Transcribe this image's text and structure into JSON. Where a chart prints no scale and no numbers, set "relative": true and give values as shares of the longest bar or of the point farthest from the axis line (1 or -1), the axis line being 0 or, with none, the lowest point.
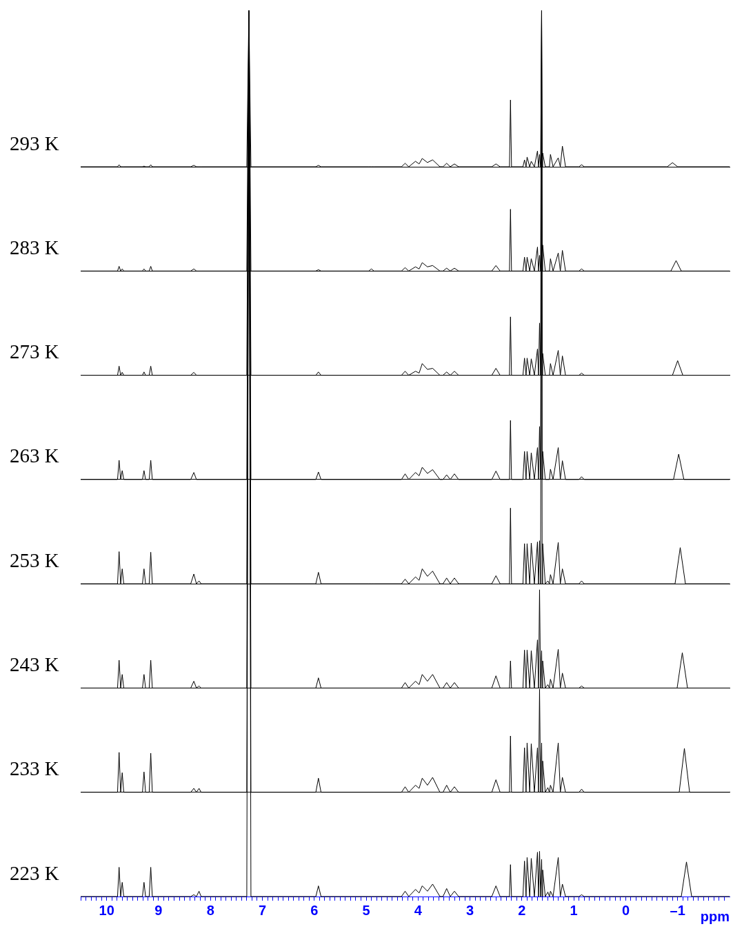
{
  "chart_data": [
    {
      "type": "line",
      "relative": true,
      "tick_labels": false,
      "xlim": [
        10.5,
        -2.0
      ],
      "x": [
        10.5,
        9.79,
        9.76,
        9.73,
        9.7,
        9.67,
        9.31,
        9.28,
        9.25,
        9.18,
        9.15,
        9.12,
        8.38,
        8.32,
        8.27,
        8.22,
        8.18,
        7.3,
        7.26,
        7.22,
        5.97,
        5.92,
        5.87,
        4.95,
        4.9,
        4.85,
        4.32,
        4.25,
        4.18,
        4.05,
        3.98,
        3.92,
        3.82,
        3.72,
        3.58,
        3.52,
        3.45,
        3.38,
        3.3,
        3.22,
        2.58,
        2.5,
        2.42,
        2.24,
        2.22,
        2.2,
        1.98,
        1.95,
        1.92,
        1.9,
        1.85,
        1.82,
        1.76,
        1.7,
        1.68,
        1.66,
        1.64,
        1.62,
        1.61,
        1.6,
        1.55,
        1.5,
        1.47,
        1.45,
        1.4,
        1.3,
        1.26,
        1.22,
        1.16,
        0.9,
        0.85,
        0.8,
        -0.8,
        -0.9,
        -1.0,
        -2.0
      ],
      "series": [
        {
          "name": "293 K",
          "color": "#000000",
          "values": [
            0,
            0,
            0.013,
            0,
            0,
            0,
            0,
            0.004,
            0,
            0,
            0.013,
            0,
            0,
            0.009,
            0,
            0,
            0,
            0,
            1,
            0,
            0,
            0.009,
            0,
            0,
            0,
            0,
            0,
            0.022,
            0,
            0.035,
            0.018,
            0.053,
            0.027,
            0.044,
            0,
            0,
            0.022,
            0,
            0.018,
            0,
            0,
            0.018,
            0,
            0,
            0.427,
            0,
            0,
            0.044,
            0,
            0.062,
            0,
            0.035,
            0,
            0.101,
            0,
            0.079,
            0,
            1,
            0,
            0.088,
            0,
            0,
            0,
            0.079,
            0,
            0.057,
            0,
            0.132,
            0,
            0,
            0.013,
            0,
            0,
            0.026,
            0,
            0
          ]
        }
      ]
    },
    {
      "type": "line",
      "relative": true,
      "tick_labels": false,
      "xlim": [
        10.5,
        -2.0
      ],
      "x": [
        10.5,
        9.79,
        9.76,
        9.73,
        9.7,
        9.67,
        9.31,
        9.28,
        9.25,
        9.18,
        9.15,
        9.12,
        8.38,
        8.32,
        8.27,
        8.22,
        8.18,
        7.3,
        7.26,
        7.22,
        5.97,
        5.92,
        5.87,
        4.95,
        4.9,
        4.85,
        4.32,
        4.25,
        4.18,
        4.05,
        3.98,
        3.92,
        3.82,
        3.72,
        3.58,
        3.52,
        3.45,
        3.38,
        3.3,
        3.22,
        2.58,
        2.5,
        2.42,
        2.24,
        2.22,
        2.2,
        1.98,
        1.95,
        1.92,
        1.9,
        1.85,
        1.82,
        1.76,
        1.7,
        1.68,
        1.66,
        1.64,
        1.62,
        1.61,
        1.6,
        1.55,
        1.5,
        1.47,
        1.45,
        1.4,
        1.3,
        1.26,
        1.22,
        1.16,
        0.9,
        0.85,
        0.8,
        -0.87,
        -0.97,
        -1.07,
        -2.0
      ],
      "series": [
        {
          "name": "283 K",
          "color": "#000000",
          "values": [
            0,
            0,
            0.018,
            0,
            0.008,
            0,
            0,
            0.008,
            0,
            0,
            0.018,
            0,
            0,
            0.008,
            0,
            0,
            0,
            0,
            1,
            0,
            0,
            0.005,
            0,
            0,
            0.008,
            0,
            0,
            0.013,
            0,
            0.016,
            0.008,
            0.032,
            0.016,
            0.021,
            0,
            0,
            0.011,
            0,
            0.011,
            0,
            0,
            0.021,
            0,
            0,
            0.237,
            0,
            0,
            0.053,
            0,
            0.053,
            0,
            0.047,
            0,
            0.092,
            0,
            0.06,
            0,
            1,
            0,
            0.1,
            0,
            0,
            0,
            0.047,
            0,
            0.069,
            0,
            0.079,
            0,
            0,
            0.008,
            0,
            0,
            0.04,
            0,
            0
          ]
        }
      ]
    },
    {
      "type": "line",
      "relative": true,
      "tick_labels": false,
      "xlim": [
        10.5,
        -2.0
      ],
      "x": [
        10.5,
        9.79,
        9.76,
        9.73,
        9.7,
        9.67,
        9.31,
        9.28,
        9.25,
        9.18,
        9.15,
        9.12,
        8.38,
        8.32,
        8.27,
        8.22,
        8.18,
        7.3,
        7.26,
        7.22,
        5.97,
        5.92,
        5.87,
        4.95,
        4.9,
        4.85,
        4.32,
        4.25,
        4.18,
        4.05,
        3.98,
        3.92,
        3.82,
        3.72,
        3.58,
        3.52,
        3.45,
        3.38,
        3.3,
        3.22,
        2.58,
        2.5,
        2.42,
        2.24,
        2.22,
        2.2,
        1.98,
        1.95,
        1.92,
        1.9,
        1.85,
        1.82,
        1.76,
        1.7,
        1.68,
        1.66,
        1.64,
        1.62,
        1.61,
        1.6,
        1.55,
        1.5,
        1.47,
        1.45,
        1.4,
        1.3,
        1.26,
        1.22,
        1.16,
        0.9,
        0.85,
        0.8,
        -0.9,
        -1.0,
        -1.1,
        -2.0
      ],
      "series": [
        {
          "name": "273 K",
          "color": "#000000",
          "values": [
            0,
            0,
            0.025,
            0,
            0.008,
            0,
            0,
            0.009,
            0,
            0,
            0.025,
            0,
            0,
            0.008,
            0,
            0,
            0,
            0,
            1,
            0,
            0,
            0.009,
            0,
            0,
            0,
            0,
            0,
            0.011,
            0,
            0.011,
            0.006,
            0.032,
            0.016,
            0.019,
            0,
            0,
            0.009,
            0,
            0.011,
            0,
            0,
            0.019,
            0,
            0,
            0.16,
            0,
            0,
            0.047,
            0,
            0.047,
            0,
            0.045,
            0,
            0.072,
            0,
            0.143,
            0,
            1,
            0,
            0.06,
            0,
            0,
            0,
            0.032,
            0,
            0.068,
            0,
            0.053,
            0,
            0,
            0.006,
            0,
            0,
            0.04,
            0,
            0
          ]
        }
      ]
    },
    {
      "type": "line",
      "relative": true,
      "tick_labels": false,
      "xlim": [
        10.5,
        -2.0
      ],
      "x": [
        10.5,
        9.79,
        9.76,
        9.73,
        9.7,
        9.67,
        9.31,
        9.28,
        9.25,
        9.18,
        9.15,
        9.12,
        8.38,
        8.32,
        8.27,
        8.22,
        8.18,
        7.3,
        7.26,
        7.22,
        5.97,
        5.92,
        5.87,
        4.95,
        4.9,
        4.85,
        4.32,
        4.25,
        4.18,
        4.05,
        3.98,
        3.92,
        3.82,
        3.72,
        3.58,
        3.52,
        3.45,
        3.38,
        3.3,
        3.22,
        2.58,
        2.5,
        2.42,
        2.24,
        2.22,
        2.2,
        1.98,
        1.95,
        1.92,
        1.9,
        1.85,
        1.82,
        1.76,
        1.7,
        1.68,
        1.66,
        1.64,
        1.62,
        1.61,
        1.6,
        1.55,
        1.5,
        1.47,
        1.45,
        1.4,
        1.3,
        1.26,
        1.22,
        1.16,
        0.9,
        0.85,
        0.8,
        -0.92,
        -1.02,
        -1.12,
        -2.0
      ],
      "series": [
        {
          "name": "263 K",
          "color": "#000000",
          "values": [
            0,
            0,
            0.041,
            0,
            0.019,
            0,
            0,
            0.019,
            0,
            0,
            0.041,
            0,
            0,
            0.015,
            0,
            0,
            0,
            0,
            1,
            0,
            0,
            0.016,
            0,
            0,
            0,
            0,
            0,
            0.012,
            0,
            0.015,
            0.008,
            0.026,
            0.013,
            0.021,
            0,
            0,
            0.01,
            0,
            0.012,
            0,
            0,
            0.018,
            0,
            0,
            0.126,
            0,
            0,
            0.06,
            0,
            0.06,
            0,
            0.057,
            0,
            0.068,
            0,
            0.113,
            0,
            1,
            0,
            0.06,
            0,
            0,
            0,
            0.022,
            0,
            0.068,
            0,
            0.04,
            0,
            0,
            0.006,
            0,
            0,
            0.054,
            0,
            0
          ]
        }
      ]
    },
    {
      "type": "line",
      "relative": true,
      "tick_labels": false,
      "xlim": [
        10.5,
        -2.0
      ],
      "x": [
        10.5,
        9.79,
        9.76,
        9.73,
        9.7,
        9.67,
        9.31,
        9.28,
        9.25,
        9.18,
        9.15,
        9.12,
        8.38,
        8.32,
        8.27,
        8.22,
        8.18,
        7.3,
        7.26,
        7.22,
        5.97,
        5.92,
        5.87,
        4.95,
        4.9,
        4.85,
        4.32,
        4.25,
        4.18,
        4.05,
        3.98,
        3.92,
        3.82,
        3.72,
        3.58,
        3.52,
        3.45,
        3.38,
        3.3,
        3.22,
        2.58,
        2.5,
        2.42,
        2.24,
        2.22,
        2.2,
        1.98,
        1.95,
        1.92,
        1.9,
        1.85,
        1.82,
        1.76,
        1.7,
        1.68,
        1.66,
        1.64,
        1.62,
        1.61,
        1.6,
        1.55,
        1.5,
        1.47,
        1.45,
        1.4,
        1.3,
        1.26,
        1.22,
        1.16,
        0.9,
        0.85,
        0.8,
        -0.95,
        -1.05,
        -1.15,
        -2.0
      ],
      "series": [
        {
          "name": "253 K",
          "color": "#000000",
          "values": [
            0,
            0,
            0.056,
            0,
            0.026,
            0,
            0,
            0.026,
            0,
            0,
            0.055,
            0,
            0,
            0.017,
            0,
            0.005,
            0,
            0,
            1,
            0,
            0,
            0.02,
            0,
            0,
            0,
            0,
            0,
            0.008,
            0,
            0.012,
            0.006,
            0.026,
            0.013,
            0.022,
            0,
            0,
            0.01,
            0,
            0.01,
            0,
            0,
            0.014,
            0,
            0,
            0.132,
            0,
            0,
            0.07,
            0,
            0.07,
            0,
            0.071,
            0,
            0.073,
            0,
            0.075,
            0,
            1,
            0,
            0.07,
            0,
            0.005,
            0,
            0.016,
            0,
            0.072,
            0,
            0.026,
            0,
            0,
            0.005,
            0,
            0,
            0.063,
            0,
            0
          ]
        }
      ]
    },
    {
      "type": "line",
      "relative": true,
      "tick_labels": false,
      "xlim": [
        10.5,
        -2.0
      ],
      "x": [
        10.5,
        9.79,
        9.76,
        9.73,
        9.7,
        9.67,
        9.31,
        9.28,
        9.25,
        9.18,
        9.15,
        9.12,
        8.38,
        8.32,
        8.27,
        8.22,
        8.18,
        7.3,
        7.26,
        7.22,
        5.97,
        5.92,
        5.87,
        4.95,
        4.9,
        4.85,
        4.32,
        4.25,
        4.18,
        4.05,
        3.98,
        3.92,
        3.82,
        3.72,
        3.58,
        3.52,
        3.45,
        3.38,
        3.3,
        3.22,
        2.58,
        2.5,
        2.42,
        2.24,
        2.22,
        2.2,
        1.98,
        1.95,
        1.92,
        1.9,
        1.85,
        1.82,
        1.76,
        1.7,
        1.68,
        1.66,
        1.64,
        1.62,
        1.61,
        1.6,
        1.55,
        1.5,
        1.47,
        1.45,
        1.4,
        1.3,
        1.26,
        1.22,
        1.16,
        0.9,
        0.85,
        0.8,
        -0.99,
        -1.09,
        -1.19,
        -2.0
      ],
      "series": [
        {
          "name": "243 K",
          "color": "#000000",
          "values": [
            0,
            0,
            0.041,
            0,
            0.02,
            0,
            0,
            0.02,
            0,
            0,
            0.041,
            0,
            0,
            0.01,
            0,
            0.003,
            0,
            0,
            1,
            0,
            0,
            0.015,
            0,
            0,
            0,
            0,
            0,
            0.008,
            0,
            0.01,
            0.005,
            0.02,
            0.01,
            0.02,
            0,
            0,
            0.008,
            0,
            0.008,
            0,
            0,
            0.018,
            0,
            0,
            0.04,
            0,
            0,
            0.056,
            0,
            0.056,
            0,
            0.055,
            0,
            0.071,
            0,
            0.145,
            0,
            0.055,
            0,
            0.04,
            0,
            0.005,
            0,
            0.013,
            0,
            0.057,
            0,
            0.022,
            0,
            0,
            0.003,
            0,
            0,
            0.052,
            0,
            0
          ]
        }
      ]
    },
    {
      "type": "line",
      "relative": true,
      "tick_labels": false,
      "xlim": [
        10.5,
        -2.0
      ],
      "x": [
        10.5,
        9.79,
        9.76,
        9.73,
        9.7,
        9.67,
        9.31,
        9.28,
        9.25,
        9.18,
        9.15,
        9.12,
        8.38,
        8.32,
        8.27,
        8.22,
        8.18,
        7.3,
        7.26,
        7.22,
        5.97,
        5.92,
        5.87,
        4.95,
        4.9,
        4.85,
        4.32,
        4.25,
        4.18,
        4.05,
        3.98,
        3.92,
        3.82,
        3.72,
        3.58,
        3.52,
        3.45,
        3.38,
        3.3,
        3.22,
        2.58,
        2.5,
        2.42,
        2.24,
        2.22,
        2.2,
        1.98,
        1.95,
        1.92,
        1.9,
        1.85,
        1.82,
        1.76,
        1.7,
        1.68,
        1.66,
        1.64,
        1.62,
        1.61,
        1.6,
        1.55,
        1.5,
        1.47,
        1.45,
        1.4,
        1.3,
        1.26,
        1.22,
        1.16,
        0.9,
        0.85,
        0.8,
        -1.03,
        -1.13,
        -1.23,
        -2.0
      ],
      "series": [
        {
          "name": "233 K",
          "color": "#000000",
          "values": [
            0,
            0,
            0.051,
            0,
            0.025,
            0,
            0,
            0.026,
            0,
            0,
            0.05,
            0,
            0,
            0.005,
            0,
            0.005,
            0,
            0,
            1,
            0,
            0,
            0.018,
            0,
            0,
            0,
            0,
            0,
            0.007,
            0,
            0.009,
            0.005,
            0.018,
            0.009,
            0.019,
            0,
            0,
            0.009,
            0,
            0.007,
            0,
            0,
            0.016,
            0,
            0,
            0.072,
            0,
            0,
            0.057,
            0,
            0.063,
            0,
            0.062,
            0,
            0.057,
            0,
            0.132,
            0,
            0.063,
            0,
            0.04,
            0,
            0.006,
            0,
            0.009,
            0,
            0.063,
            0,
            0.019,
            0,
            0,
            0.004,
            0,
            0,
            0.056,
            0,
            0
          ]
        }
      ]
    },
    {
      "type": "line",
      "relative": true,
      "tick_labels": "x",
      "xlim": [
        10.5,
        -2.0
      ],
      "xlabel": "ppm",
      "xticks": [
        {
          "value": 10.5,
          "label": null
        },
        {
          "value": 10.4,
          "label": null
        },
        {
          "value": 10.3,
          "label": null
        },
        {
          "value": 10.2,
          "label": null
        },
        {
          "value": 10.1,
          "label": null
        },
        10,
        {
          "value": 9.9,
          "label": null
        },
        {
          "value": 9.8,
          "label": null
        },
        {
          "value": 9.7,
          "label": null
        },
        {
          "value": 9.6,
          "label": null
        },
        {
          "value": 9.5,
          "label": null
        },
        {
          "value": 9.4,
          "label": null
        },
        {
          "value": 9.3,
          "label": null
        },
        {
          "value": 9.2,
          "label": null
        },
        {
          "value": 9.1,
          "label": null
        },
        9,
        {
          "value": 8.9,
          "label": null
        },
        {
          "value": 8.8,
          "label": null
        },
        {
          "value": 8.7,
          "label": null
        },
        {
          "value": 8.6,
          "label": null
        },
        {
          "value": 8.5,
          "label": null
        },
        {
          "value": 8.4,
          "label": null
        },
        {
          "value": 8.3,
          "label": null
        },
        {
          "value": 8.2,
          "label": null
        },
        {
          "value": 8.1,
          "label": null
        },
        8,
        {
          "value": 7.9,
          "label": null
        },
        {
          "value": 7.8,
          "label": null
        },
        {
          "value": 7.7,
          "label": null
        },
        {
          "value": 7.6,
          "label": null
        },
        {
          "value": 7.5,
          "label": null
        },
        {
          "value": 7.4,
          "label": null
        },
        {
          "value": 7.3,
          "label": null
        },
        {
          "value": 7.2,
          "label": null
        },
        {
          "value": 7.1,
          "label": null
        },
        7,
        {
          "value": 6.9,
          "label": null
        },
        {
          "value": 6.8,
          "label": null
        },
        {
          "value": 6.7,
          "label": null
        },
        {
          "value": 6.6,
          "label": null
        },
        {
          "value": 6.5,
          "label": null
        },
        {
          "value": 6.4,
          "label": null
        },
        {
          "value": 6.3,
          "label": null
        },
        {
          "value": 6.2,
          "label": null
        },
        {
          "value": 6.1,
          "label": null
        },
        6,
        {
          "value": 5.9,
          "label": null
        },
        {
          "value": 5.8,
          "label": null
        },
        {
          "value": 5.7,
          "label": null
        },
        {
          "value": 5.6,
          "label": null
        },
        {
          "value": 5.5,
          "label": null
        },
        {
          "value": 5.4,
          "label": null
        },
        {
          "value": 5.3,
          "label": null
        },
        {
          "value": 5.2,
          "label": null
        },
        {
          "value": 5.1,
          "label": null
        },
        5,
        {
          "value": 4.9,
          "label": null
        },
        {
          "value": 4.8,
          "label": null
        },
        {
          "value": 4.7,
          "label": null
        },
        {
          "value": 4.6,
          "label": null
        },
        {
          "value": 4.5,
          "label": null
        },
        {
          "value": 4.4,
          "label": null
        },
        {
          "value": 4.3,
          "label": null
        },
        {
          "value": 4.2,
          "label": null
        },
        {
          "value": 4.1,
          "label": null
        },
        4,
        {
          "value": 3.9,
          "label": null
        },
        {
          "value": 3.8,
          "label": null
        },
        {
          "value": 3.7,
          "label": null
        },
        {
          "value": 3.6,
          "label": null
        },
        {
          "value": 3.5,
          "label": null
        },
        {
          "value": 3.4,
          "label": null
        },
        {
          "value": 3.3,
          "label": null
        },
        {
          "value": 3.2,
          "label": null
        },
        {
          "value": 3.1,
          "label": null
        },
        3,
        {
          "value": 2.9,
          "label": null
        },
        {
          "value": 2.8,
          "label": null
        },
        {
          "value": 2.7,
          "label": null
        },
        {
          "value": 2.6,
          "label": null
        },
        {
          "value": 2.5,
          "label": null
        },
        {
          "value": 2.4,
          "label": null
        },
        {
          "value": 2.3,
          "label": null
        },
        {
          "value": 2.2,
          "label": null
        },
        {
          "value": 2.1,
          "label": null
        },
        2,
        {
          "value": 1.9,
          "label": null
        },
        {
          "value": 1.8,
          "label": null
        },
        {
          "value": 1.7,
          "label": null
        },
        {
          "value": 1.6,
          "label": null
        },
        {
          "value": 1.5,
          "label": null
        },
        {
          "value": 1.4,
          "label": null
        },
        {
          "value": 1.3,
          "label": null
        },
        {
          "value": 1.2,
          "label": null
        },
        {
          "value": 1.1,
          "label": null
        },
        1,
        {
          "value": 0.9,
          "label": null
        },
        {
          "value": 0.8,
          "label": null
        },
        {
          "value": 0.7,
          "label": null
        },
        {
          "value": 0.6,
          "label": null
        },
        {
          "value": 0.5,
          "label": null
        },
        {
          "value": 0.4,
          "label": null
        },
        {
          "value": 0.3,
          "label": null
        },
        {
          "value": 0.2,
          "label": null
        },
        {
          "value": 0.1,
          "label": null
        },
        0,
        {
          "value": -0.1,
          "label": null
        },
        {
          "value": -0.2,
          "label": null
        },
        {
          "value": -0.3,
          "label": null
        },
        {
          "value": -0.4,
          "label": null
        },
        {
          "value": -0.5,
          "label": null
        },
        {
          "value": -0.6,
          "label": null
        },
        {
          "value": -0.7,
          "label": null
        },
        {
          "value": -0.8,
          "label": null
        },
        {
          "value": -0.9,
          "label": null
        },
        {
          "value": -1,
          "label": "–1"
        },
        {
          "value": -1.1,
          "label": null
        },
        {
          "value": -1.2,
          "label": null
        },
        {
          "value": -1.3,
          "label": null
        },
        {
          "value": -1.4,
          "label": null
        },
        {
          "value": -1.5,
          "label": null
        },
        {
          "value": -1.6,
          "label": null
        },
        {
          "value": -1.7,
          "label": null
        },
        {
          "value": -1.8,
          "label": null
        },
        {
          "value": -1.9,
          "label": null
        }
      ],
      "x": [
        10.5,
        9.79,
        9.76,
        9.73,
        9.7,
        9.67,
        9.31,
        9.28,
        9.25,
        9.18,
        9.15,
        9.12,
        8.38,
        8.32,
        8.27,
        8.22,
        8.18,
        7.3,
        7.26,
        7.22,
        5.97,
        5.92,
        5.87,
        4.95,
        4.9,
        4.85,
        4.32,
        4.25,
        4.18,
        4.05,
        3.98,
        3.92,
        3.82,
        3.72,
        3.58,
        3.52,
        3.45,
        3.38,
        3.3,
        3.22,
        2.58,
        2.5,
        2.42,
        2.24,
        2.22,
        2.2,
        1.98,
        1.95,
        1.92,
        1.9,
        1.85,
        1.82,
        1.76,
        1.7,
        1.68,
        1.66,
        1.64,
        1.62,
        1.61,
        1.6,
        1.55,
        1.5,
        1.47,
        1.45,
        1.4,
        1.3,
        1.26,
        1.22,
        1.16,
        0.9,
        0.85,
        0.8,
        -1.07,
        -1.17,
        -1.27,
        -2.0
      ],
      "series": [
        {
          "name": "223 K",
          "color": "#000000",
          "values": [
            0,
            0,
            0.033,
            0,
            0.016,
            0,
            0,
            0.016,
            0,
            0,
            0.033,
            0,
            0,
            0.002,
            0,
            0.006,
            0,
            0,
            1,
            0,
            0,
            0.012,
            0,
            0,
            0,
            0,
            0,
            0.006,
            0,
            0.008,
            0.004,
            0.012,
            0.006,
            0.014,
            0,
            0,
            0.009,
            0,
            0.006,
            0,
            0,
            0.012,
            0,
            0,
            0.036,
            0,
            0,
            0.04,
            0,
            0.044,
            0,
            0.043,
            0,
            0.05,
            0,
            0.051,
            0,
            0.042,
            0,
            0.03,
            0,
            0.005,
            0,
            0.006,
            0,
            0.044,
            0,
            0.014,
            0,
            0,
            0.002,
            0,
            0,
            0.039,
            0,
            0
          ]
        }
      ]
    }
  ]
}
